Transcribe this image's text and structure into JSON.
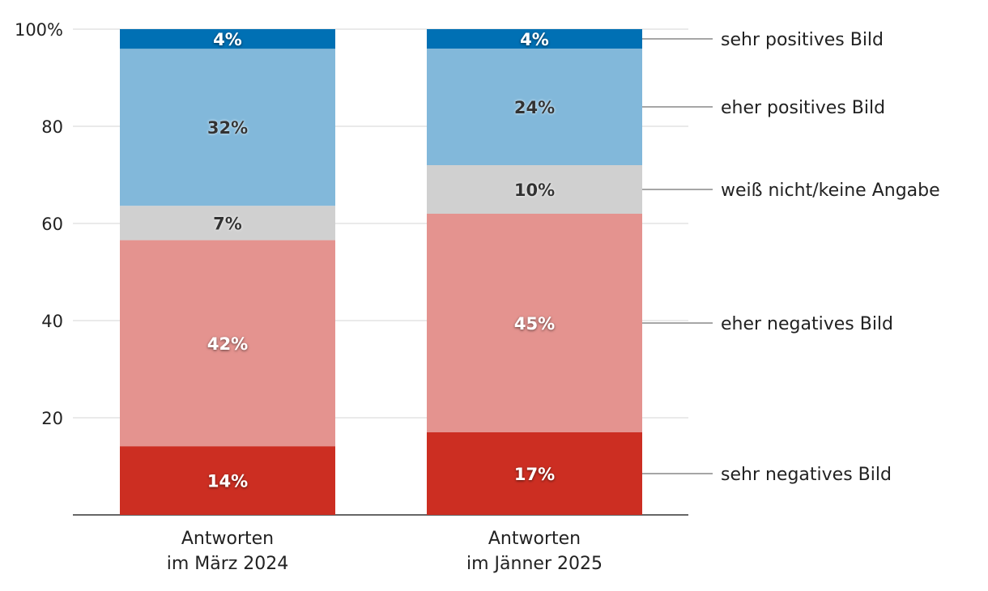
{
  "chart_data": {
    "type": "bar",
    "stacked": true,
    "title": "",
    "xlabel": "",
    "ylabel": "",
    "ylim": [
      0,
      100
    ],
    "yticks": [
      "20",
      "40",
      "60",
      "80",
      "100%"
    ],
    "ytick_values": [
      20,
      40,
      60,
      80,
      100
    ],
    "grid": true,
    "legend_placement": "right",
    "categories": [
      "Antworten\nim März 2024",
      "Antworten\nim Jänner 2025"
    ],
    "category_lines": [
      [
        "Antworten",
        "im März 2024"
      ],
      [
        "Antworten",
        "im Jänner 2025"
      ]
    ],
    "series": [
      {
        "name": "sehr negatives Bild",
        "color": "#cc2e22",
        "label_color": "#ffffff",
        "values": [
          14,
          17
        ],
        "labels": [
          "14%",
          "17%"
        ]
      },
      {
        "name": "eher negatives Bild",
        "color": "#e4938f",
        "label_color": "#ffffff",
        "values": [
          42,
          45
        ],
        "labels": [
          "42%",
          "45%"
        ]
      },
      {
        "name": "weiß nicht/keine Angabe",
        "color": "#d0d0d0",
        "label_color": "#333333",
        "values": [
          7,
          10
        ],
        "labels": [
          "7%",
          "10%"
        ]
      },
      {
        "name": "eher positives Bild",
        "color": "#82b8da",
        "label_color": "#333333",
        "values": [
          32,
          24
        ],
        "labels": [
          "32%",
          "24%"
        ]
      },
      {
        "name": "sehr positives Bild",
        "color": "#0070b4",
        "label_color": "#ffffff",
        "values": [
          4,
          4
        ],
        "labels": [
          "4%",
          "4%"
        ]
      }
    ]
  }
}
